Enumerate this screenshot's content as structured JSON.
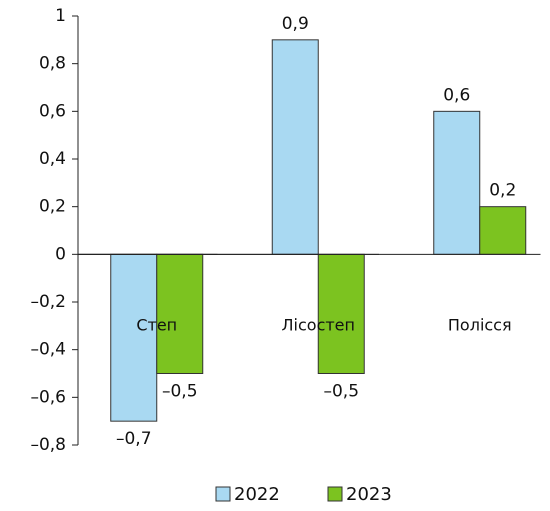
{
  "chart_data": {
    "type": "bar",
    "categories": [
      "Степ",
      "Лісостеп",
      "Полісся"
    ],
    "series": [
      {
        "name": "2022",
        "color": "#a9d9f2",
        "values": [
          -0.7,
          0.9,
          0.6
        ],
        "value_labels": [
          "–0,7",
          "0,9",
          "0,6"
        ]
      },
      {
        "name": "2023",
        "color": "#7cc320",
        "values": [
          -0.5,
          -0.5,
          0.2
        ],
        "value_labels": [
          "–0,5",
          "–0,5",
          "0,2"
        ]
      }
    ],
    "ylim": [
      -0.8,
      1
    ],
    "yticks": [
      {
        "value": -0.8,
        "label": "–0,8"
      },
      {
        "value": -0.6,
        "label": "–0,6"
      },
      {
        "value": -0.4,
        "label": "–0,4"
      },
      {
        "value": -0.2,
        "label": "–0,2"
      },
      0,
      {
        "value": 0.2,
        "label": "0,2"
      },
      {
        "value": 0.4,
        "label": "0,4"
      },
      {
        "value": 0.6,
        "label": "0,6"
      },
      {
        "value": 0.8,
        "label": "0,8"
      },
      1
    ],
    "legend": "bottom"
  }
}
